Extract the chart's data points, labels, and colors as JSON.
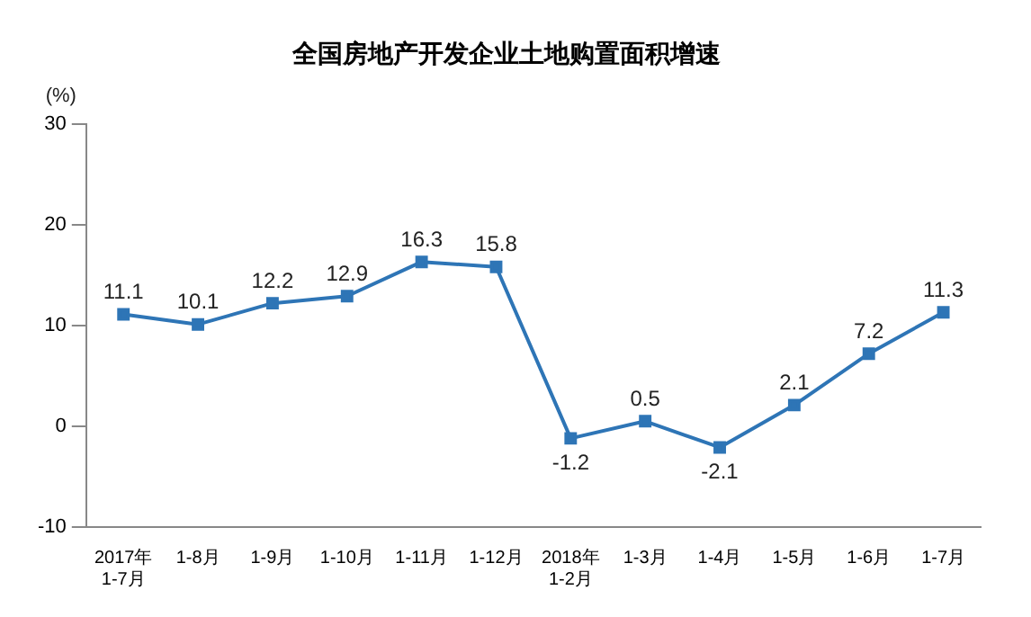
{
  "chart_data": {
    "type": "line",
    "title": "全国房地产开发企业土地购置面积增速",
    "ylabel": "(%)",
    "categories": [
      "2017年\n1-7月",
      "1-8月",
      "1-9月",
      "1-10月",
      "1-11月",
      "1-12月",
      "2018年\n1-2月",
      "1-3月",
      "1-4月",
      "1-5月",
      "1-6月",
      "1-7月"
    ],
    "series": [
      {
        "color": "#2e75b6",
        "values": [
          11.1,
          10.1,
          12.2,
          12.9,
          16.3,
          15.8,
          -1.2,
          0.5,
          -2.1,
          2.1,
          7.2,
          11.3
        ]
      }
    ],
    "ylim": [
      -10,
      30
    ],
    "yticks": [
      -10,
      0,
      10,
      20,
      30
    ],
    "grid": false,
    "legend": false,
    "marker": "square",
    "line_style": "solid",
    "data_labels": true
  }
}
